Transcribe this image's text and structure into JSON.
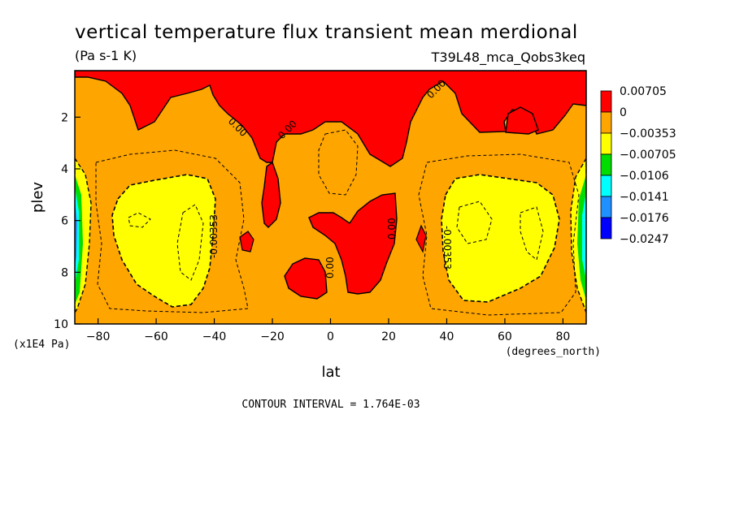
{
  "title": "vertical temperature flux transient mean merdional",
  "units": "(Pa s-1 K)",
  "run_id": "T39L48_mca_Qobs3keq",
  "footer": "CONTOUR INTERVAL = 1.764E-03",
  "chart_data": {
    "type": "heatmap",
    "title": "vertical temperature flux transient mean merdional",
    "xlabel": "lat",
    "xunits": "(degrees_north)",
    "ylabel": "plev",
    "yunits": "(x1E4 Pa)",
    "xlim": [
      -88,
      88
    ],
    "ylim": [
      0.2,
      10
    ],
    "y_inverted": true,
    "x_ticks": [
      -80,
      -60,
      -40,
      -20,
      0,
      20,
      40,
      60,
      80
    ],
    "y_ticks": [
      2,
      4,
      6,
      8,
      10
    ],
    "contour_interval": 0.001764,
    "contour_labels": [
      "0.00",
      "0.00",
      "0.00",
      "0.00",
      "0.00",
      "-0.00353",
      "-0.00353"
    ],
    "colorbar": {
      "labels": [
        "0.00705",
        "0",
        "-0.00353",
        "-0.00705",
        "-0.0106",
        "-0.0141",
        "-0.0176",
        "-0.0247"
      ],
      "colors": [
        "#ff0000",
        "#ffa500",
        "#ffff00",
        "#00dd00",
        "#00ffff",
        "#1e90ff",
        "#0000ff"
      ]
    }
  },
  "colors": {
    "positive": "#ff0000",
    "weak_negative": "#ffa500",
    "negative": "#ffff00"
  }
}
